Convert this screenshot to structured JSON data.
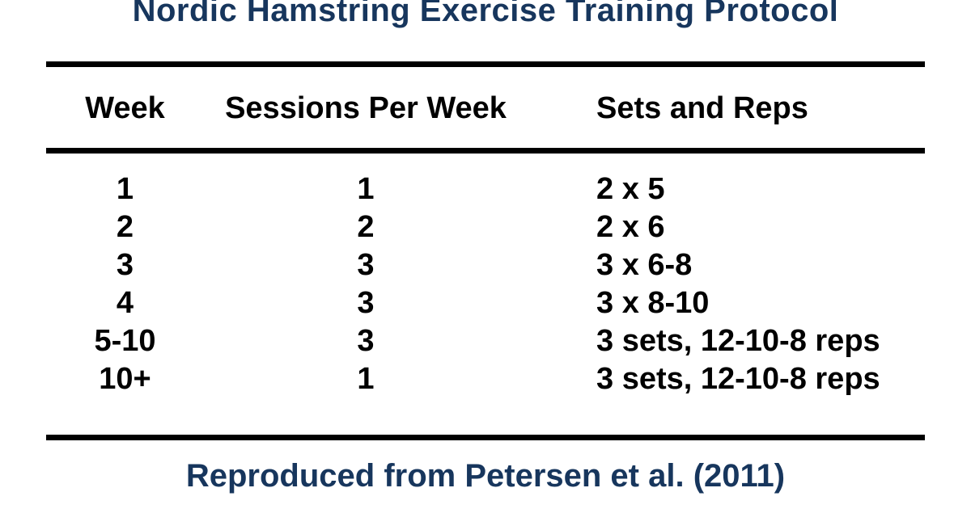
{
  "title": "Nordic Hamstring Exercise Training Protocol",
  "table": {
    "columns": [
      "Week",
      "Sessions Per Week",
      "Sets and Reps"
    ],
    "rows": [
      {
        "week": "1",
        "sessions": "1",
        "sets_reps": "2 x 5"
      },
      {
        "week": "2",
        "sessions": "2",
        "sets_reps": "2 x 6"
      },
      {
        "week": "3",
        "sessions": "3",
        "sets_reps": "3 x 6-8"
      },
      {
        "week": "4",
        "sessions": "3",
        "sets_reps": "3 x 8-10"
      },
      {
        "week": "5-10",
        "sessions": "3",
        "sets_reps": "3 sets, 12-10-8 reps"
      },
      {
        "week": "10+",
        "sessions": "1",
        "sets_reps": "3 sets, 12-10-8 reps"
      }
    ]
  },
  "footer": "Reproduced from Petersen et al. (2011)",
  "colors": {
    "accent_navy": "#17365D",
    "table_text": "#000000",
    "rule": "#000000",
    "background": "#ffffff"
  },
  "chart_data": {
    "type": "table",
    "title": "Nordic Hamstring Exercise Training Protocol",
    "columns": [
      "Week",
      "Sessions Per Week",
      "Sets and Reps"
    ],
    "rows": [
      [
        "1",
        "1",
        "2 x 5"
      ],
      [
        "2",
        "2",
        "2 x 6"
      ],
      [
        "3",
        "3",
        "3 x 6-8"
      ],
      [
        "4",
        "3",
        "3 x 8-10"
      ],
      [
        "5-10",
        "3",
        "3 sets, 12-10-8 reps"
      ],
      [
        "10+",
        "1",
        "3 sets, 12-10-8 reps"
      ]
    ],
    "caption": "Reproduced from Petersen et al. (2011)"
  }
}
